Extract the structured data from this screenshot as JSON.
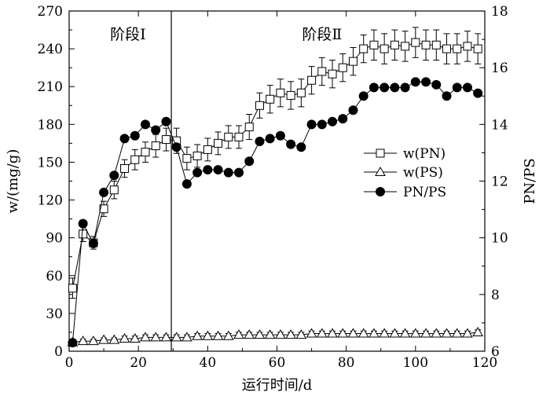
{
  "chart_data": {
    "type": "line",
    "xlabel": "运行时间/d",
    "ylabel_left": "w/(mg/g)",
    "ylabel_right": "PN/PS",
    "xlim": [
      0,
      120
    ],
    "xticks": [
      0,
      20,
      40,
      60,
      80,
      100,
      120
    ],
    "ylim_left": [
      0,
      270
    ],
    "yticks_left": [
      0,
      30,
      60,
      90,
      120,
      150,
      180,
      210,
      240,
      270
    ],
    "ylim_right": [
      6,
      18
    ],
    "yticks_right": [
      6,
      8,
      10,
      12,
      14,
      16,
      18
    ],
    "grid": false,
    "legend_position": "right-middle",
    "stage_divider_x": 29.5,
    "stages": [
      {
        "label": "阶段Ⅰ",
        "x": 17
      },
      {
        "label": "阶段Ⅱ",
        "x": 73
      }
    ],
    "series": [
      {
        "name": "w(PN)",
        "axis": "left",
        "marker": "square",
        "x": [
          1,
          4,
          7,
          10,
          13,
          16,
          19,
          22,
          25,
          28,
          31,
          34,
          37,
          40,
          43,
          46,
          49,
          52,
          55,
          58,
          61,
          64,
          67,
          70,
          73,
          76,
          79,
          82,
          85,
          88,
          91,
          94,
          97,
          100,
          103,
          106,
          109,
          112,
          115,
          118
        ],
        "y": [
          50,
          93,
          86,
          113,
          128,
          145,
          152,
          158,
          163,
          168,
          167,
          153,
          155,
          160,
          165,
          170,
          170,
          178,
          195,
          200,
          205,
          203,
          205,
          215,
          222,
          220,
          225,
          230,
          240,
          243,
          240,
          243,
          242,
          245,
          243,
          243,
          240,
          240,
          242,
          240
        ],
        "err": [
          8,
          6,
          5,
          6,
          7,
          7,
          8,
          8,
          9,
          9,
          10,
          9,
          9,
          9,
          9,
          9,
          9,
          10,
          10,
          11,
          11,
          11,
          11,
          11,
          11,
          11,
          11,
          11,
          11,
          12,
          12,
          12,
          12,
          12,
          12,
          12,
          12,
          12,
          12,
          12
        ]
      },
      {
        "name": "w(PS)",
        "axis": "left",
        "marker": "triangle",
        "x": [
          1,
          4,
          7,
          10,
          13,
          16,
          19,
          22,
          25,
          28,
          31,
          34,
          37,
          40,
          43,
          46,
          49,
          52,
          55,
          58,
          61,
          64,
          67,
          70,
          73,
          76,
          79,
          82,
          85,
          88,
          91,
          94,
          97,
          100,
          103,
          106,
          109,
          112,
          115,
          118
        ],
        "y": [
          7,
          8,
          8,
          9,
          9,
          10,
          10,
          11,
          11,
          11,
          11,
          11,
          12,
          12,
          12,
          12,
          13,
          13,
          13,
          13,
          13,
          13,
          13,
          14,
          14,
          14,
          14,
          14,
          14,
          14,
          14,
          14,
          14,
          14,
          14,
          14,
          14,
          14,
          14,
          15
        ],
        "err": [
          1.5,
          1.5,
          1.5,
          1.5,
          1.5,
          2,
          2,
          2,
          2,
          2,
          2,
          2,
          2,
          2,
          2,
          2,
          2,
          2,
          2,
          2,
          2,
          2,
          2,
          2,
          2,
          2,
          2,
          2,
          2,
          2,
          2,
          2,
          2,
          2,
          2,
          2,
          2,
          2,
          2,
          2
        ]
      },
      {
        "name": "PN/PS",
        "axis": "right",
        "marker": "circle",
        "x": [
          1,
          4,
          7,
          10,
          13,
          16,
          19,
          22,
          25,
          28,
          31,
          34,
          37,
          40,
          43,
          46,
          49,
          52,
          55,
          58,
          61,
          64,
          67,
          70,
          73,
          76,
          79,
          82,
          85,
          88,
          91,
          94,
          97,
          100,
          103,
          106,
          109,
          112,
          115,
          118
        ],
        "y": [
          6.3,
          10.5,
          9.8,
          11.6,
          12.2,
          13.5,
          13.6,
          14.0,
          13.8,
          14.1,
          13.2,
          11.9,
          12.3,
          12.4,
          12.4,
          12.3,
          12.3,
          12.7,
          13.4,
          13.5,
          13.6,
          13.3,
          13.2,
          14.0,
          14.0,
          14.1,
          14.2,
          14.5,
          15.0,
          15.3,
          15.3,
          15.3,
          15.3,
          15.5,
          15.5,
          15.4,
          15.0,
          15.3,
          15.3,
          15.1
        ]
      }
    ]
  }
}
